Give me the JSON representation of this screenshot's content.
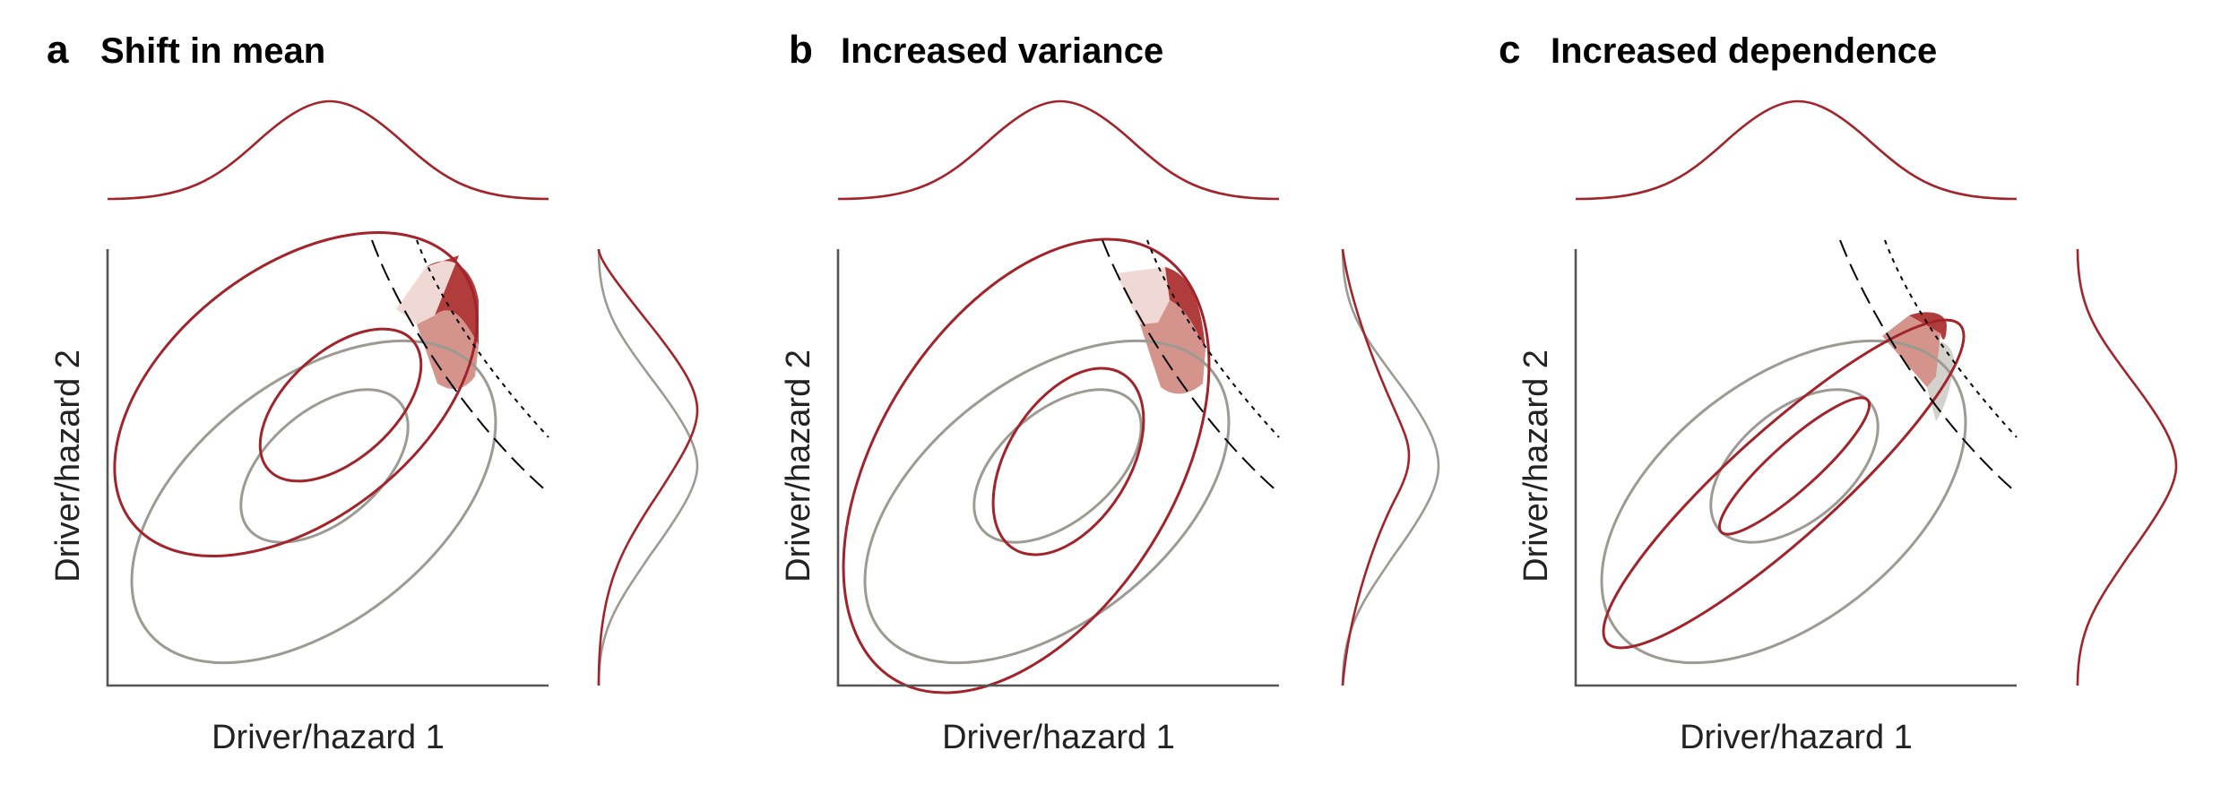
{
  "panels": [
    {
      "letter": "a",
      "title": "Shift in mean",
      "x_label": "Driver/hazard 1",
      "y_label": "Driver/hazard 2",
      "scenario": "shift-in-mean"
    },
    {
      "letter": "b",
      "title": "Increased variance",
      "x_label": "Driver/hazard 1",
      "y_label": "Driver/hazard 2",
      "scenario": "increased-variance"
    },
    {
      "letter": "c",
      "title": "Increased dependence",
      "x_label": "Driver/hazard 1",
      "y_label": "Driver/hazard 2",
      "scenario": "increased-dependence"
    }
  ],
  "colors": {
    "changed": "#a3232b",
    "reference": "#9c9a92",
    "axis": "#555555",
    "threshold": "#000000",
    "region_light": "#f0d8d4",
    "region_mid": "#d4948c",
    "region_dark": "#b03c3c",
    "region_grey": "#d2d1cc"
  }
}
